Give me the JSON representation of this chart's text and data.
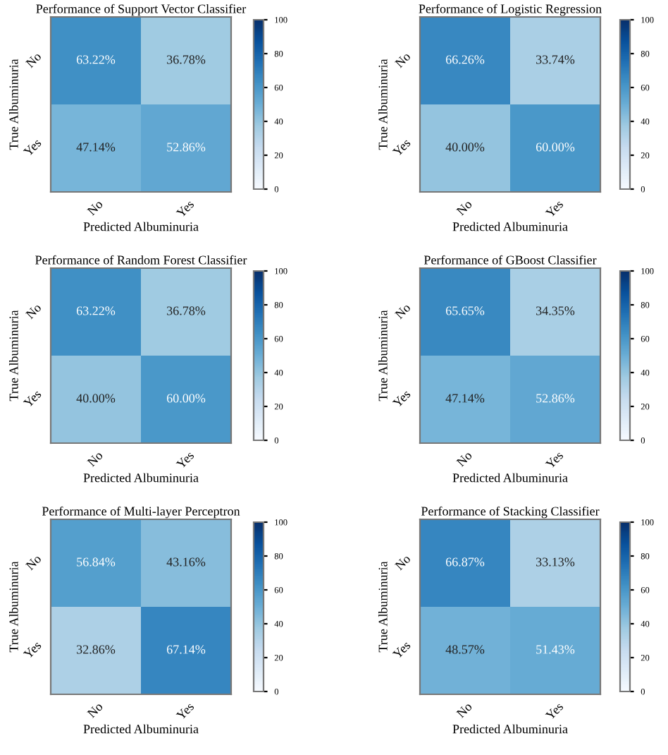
{
  "chart_data": [
    {
      "type": "heatmap",
      "title": "Performance of Support Vector Classifier",
      "xlabel": "Predicted Albuminuria",
      "ylabel": "True Albuminuria",
      "categories": [
        "No",
        "Yes"
      ],
      "y_categories": [
        "No",
        "Yes"
      ],
      "cells": [
        [
          63.22,
          36.78
        ],
        [
          47.14,
          52.86
        ]
      ],
      "cell_labels": [
        [
          "63.22%",
          "36.78%"
        ],
        [
          "47.14%",
          "52.86%"
        ]
      ],
      "clim": [
        0,
        100
      ],
      "cticks": [
        0,
        20,
        40,
        60,
        80,
        100
      ]
    },
    {
      "type": "heatmap",
      "title": "Performance of Logistic Regression",
      "xlabel": "Predicted Albuminuria",
      "ylabel": "True Albuminuria",
      "categories": [
        "No",
        "Yes"
      ],
      "y_categories": [
        "No",
        "Yes"
      ],
      "cells": [
        [
          66.26,
          33.74
        ],
        [
          40.0,
          60.0
        ]
      ],
      "cell_labels": [
        [
          "66.26%",
          "33.74%"
        ],
        [
          "40.00%",
          "60.00%"
        ]
      ],
      "clim": [
        0,
        100
      ],
      "cticks": [
        0,
        20,
        40,
        60,
        80,
        100
      ]
    },
    {
      "type": "heatmap",
      "title": "Performance of Random Forest Classifier",
      "xlabel": "Predicted Albuminuria",
      "ylabel": "True Albuminuria",
      "categories": [
        "No",
        "Yes"
      ],
      "y_categories": [
        "No",
        "Yes"
      ],
      "cells": [
        [
          63.22,
          36.78
        ],
        [
          40.0,
          60.0
        ]
      ],
      "cell_labels": [
        [
          "63.22%",
          "36.78%"
        ],
        [
          "40.00%",
          "60.00%"
        ]
      ],
      "clim": [
        0,
        100
      ],
      "cticks": [
        0,
        20,
        40,
        60,
        80,
        100
      ]
    },
    {
      "type": "heatmap",
      "title": "Performance of GBoost Classifier",
      "xlabel": "Predicted Albuminuria",
      "ylabel": "True Albuminuria",
      "categories": [
        "No",
        "Yes"
      ],
      "y_categories": [
        "No",
        "Yes"
      ],
      "cells": [
        [
          65.65,
          34.35
        ],
        [
          47.14,
          52.86
        ]
      ],
      "cell_labels": [
        [
          "65.65%",
          "34.35%"
        ],
        [
          "47.14%",
          "52.86%"
        ]
      ],
      "clim": [
        0,
        100
      ],
      "cticks": [
        0,
        20,
        40,
        60,
        80,
        100
      ]
    },
    {
      "type": "heatmap",
      "title": "Performance of Multi-layer Perceptron",
      "xlabel": "Predicted Albuminuria",
      "ylabel": "True Albuminuria",
      "categories": [
        "No",
        "Yes"
      ],
      "y_categories": [
        "No",
        "Yes"
      ],
      "cells": [
        [
          56.84,
          43.16
        ],
        [
          32.86,
          67.14
        ]
      ],
      "cell_labels": [
        [
          "56.84%",
          "43.16%"
        ],
        [
          "32.86%",
          "67.14%"
        ]
      ],
      "clim": [
        0,
        100
      ],
      "cticks": [
        0,
        20,
        40,
        60,
        80,
        100
      ]
    },
    {
      "type": "heatmap",
      "title": "Performance of Stacking Classifier",
      "xlabel": "Predicted Albuminuria",
      "ylabel": "True Albuminuria",
      "categories": [
        "No",
        "Yes"
      ],
      "y_categories": [
        "No",
        "Yes"
      ],
      "cells": [
        [
          66.87,
          33.13
        ],
        [
          48.57,
          51.43
        ]
      ],
      "cell_labels": [
        [
          "66.87%",
          "33.13%"
        ],
        [
          "48.57%",
          "51.43%"
        ]
      ],
      "clim": [
        0,
        100
      ],
      "cticks": [
        0,
        20,
        40,
        60,
        80,
        100
      ]
    }
  ]
}
